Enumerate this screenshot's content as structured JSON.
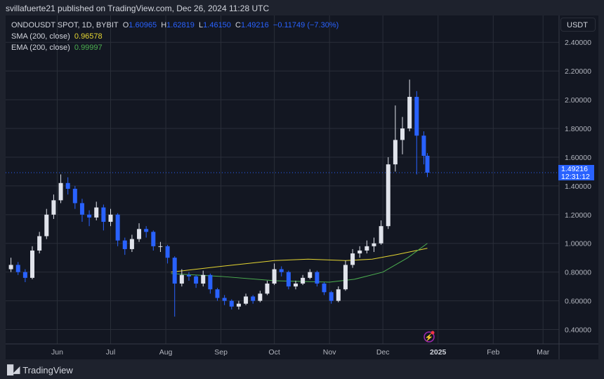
{
  "header": {
    "published": "svillafuerte21 published on TradingView.com, Dec 26, 2024 11:28 UTC"
  },
  "legend": {
    "symbol": "ONDOUSDT SPOT, 1D, BYBIT",
    "o_label": "O",
    "o": "1.60965",
    "h_label": "H",
    "h": "1.62819",
    "l_label": "L",
    "l": "1.46150",
    "c_label": "C",
    "c": "1.49216",
    "change": "−0.11749 (−7.30%)",
    "sma_label": "SMA (200, close)",
    "sma_value": "0.96578",
    "ema_label": "EMA (200, close)",
    "ema_value": "0.99997"
  },
  "price_axis": {
    "currency": "USDT",
    "current_price": "1.49216",
    "countdown": "12:31:12"
  },
  "footer": {
    "brand": "TradingView"
  },
  "colors": {
    "up": "#e0e3eb",
    "down": "#2962ff",
    "sma": "#e4d531",
    "ema": "#4caf50",
    "background": "#131722",
    "grid": "#2a2e39"
  },
  "chart_data": {
    "type": "candlestick",
    "ylim": [
      0.3,
      2.45
    ],
    "xlim": [
      "2024-05-03",
      "2025-03-10"
    ],
    "y_ticks": [
      "2.40000",
      "2.20000",
      "2.00000",
      "1.80000",
      "1.60000",
      "1.40000",
      "1.20000",
      "1.00000",
      "0.80000",
      "0.60000",
      "0.40000"
    ],
    "x_ticks": [
      [
        "Jun",
        "2024-06-01"
      ],
      [
        "Jul",
        "2024-07-01"
      ],
      [
        "Aug",
        "2024-08-01"
      ],
      [
        "Sep",
        "2024-09-01"
      ],
      [
        "Oct",
        "2024-10-01"
      ],
      [
        "Nov",
        "2024-11-01"
      ],
      [
        "Dec",
        "2024-12-01"
      ],
      [
        "2025",
        "2025-01-01"
      ],
      [
        "Feb",
        "2025-02-01"
      ],
      [
        "Mar",
        "2025-03-01"
      ]
    ],
    "candles": [
      [
        "2024-05-06",
        0.82,
        0.9,
        0.8,
        0.85
      ],
      [
        "2024-05-10",
        0.85,
        0.87,
        0.78,
        0.8
      ],
      [
        "2024-05-14",
        0.8,
        0.82,
        0.73,
        0.76
      ],
      [
        "2024-05-18",
        0.76,
        0.98,
        0.75,
        0.95
      ],
      [
        "2024-05-22",
        0.95,
        1.08,
        0.93,
        1.05
      ],
      [
        "2024-05-26",
        1.05,
        1.24,
        1.03,
        1.2
      ],
      [
        "2024-05-30",
        1.2,
        1.34,
        1.17,
        1.3
      ],
      [
        "2024-06-03",
        1.3,
        1.48,
        1.28,
        1.42
      ],
      [
        "2024-06-07",
        1.42,
        1.46,
        1.34,
        1.38
      ],
      [
        "2024-06-11",
        1.38,
        1.4,
        1.24,
        1.28
      ],
      [
        "2024-06-15",
        1.28,
        1.31,
        1.15,
        1.2
      ],
      [
        "2024-06-19",
        1.2,
        1.23,
        1.12,
        1.18
      ],
      [
        "2024-06-23",
        1.18,
        1.29,
        1.16,
        1.25
      ],
      [
        "2024-06-27",
        1.25,
        1.27,
        1.09,
        1.15
      ],
      [
        "2024-07-01",
        1.15,
        1.24,
        1.12,
        1.2
      ],
      [
        "2024-07-05",
        1.2,
        1.21,
        0.98,
        1.02
      ],
      [
        "2024-07-09",
        1.02,
        1.04,
        0.92,
        0.96
      ],
      [
        "2024-07-13",
        0.96,
        1.06,
        0.94,
        1.03
      ],
      [
        "2024-07-17",
        1.03,
        1.14,
        1.01,
        1.1
      ],
      [
        "2024-07-21",
        1.1,
        1.12,
        1.04,
        1.08
      ],
      [
        "2024-07-25",
        1.08,
        1.09,
        0.95,
        0.98
      ],
      [
        "2024-07-29",
        0.98,
        1.01,
        0.94,
        0.98
      ],
      [
        "2024-08-02",
        0.98,
        0.99,
        0.86,
        0.9
      ],
      [
        "2024-08-06",
        0.9,
        0.91,
        0.49,
        0.72
      ],
      [
        "2024-08-10",
        0.72,
        0.82,
        0.7,
        0.78
      ],
      [
        "2024-08-14",
        0.78,
        0.8,
        0.74,
        0.77
      ],
      [
        "2024-08-18",
        0.77,
        0.78,
        0.69,
        0.72
      ],
      [
        "2024-08-22",
        0.72,
        0.81,
        0.7,
        0.78
      ],
      [
        "2024-08-26",
        0.78,
        0.79,
        0.65,
        0.68
      ],
      [
        "2024-08-30",
        0.68,
        0.69,
        0.6,
        0.62
      ],
      [
        "2024-09-03",
        0.62,
        0.64,
        0.57,
        0.6
      ],
      [
        "2024-09-07",
        0.6,
        0.61,
        0.54,
        0.56
      ],
      [
        "2024-09-11",
        0.56,
        0.6,
        0.54,
        0.58
      ],
      [
        "2024-09-15",
        0.58,
        0.65,
        0.57,
        0.63
      ],
      [
        "2024-09-19",
        0.63,
        0.64,
        0.58,
        0.6
      ],
      [
        "2024-09-23",
        0.6,
        0.67,
        0.59,
        0.65
      ],
      [
        "2024-09-27",
        0.65,
        0.74,
        0.64,
        0.72
      ],
      [
        "2024-10-01",
        0.72,
        0.86,
        0.71,
        0.82
      ],
      [
        "2024-10-05",
        0.82,
        0.84,
        0.77,
        0.8
      ],
      [
        "2024-10-09",
        0.8,
        0.81,
        0.68,
        0.7
      ],
      [
        "2024-10-13",
        0.7,
        0.74,
        0.68,
        0.72
      ],
      [
        "2024-10-17",
        0.72,
        0.78,
        0.71,
        0.76
      ],
      [
        "2024-10-21",
        0.76,
        0.82,
        0.75,
        0.8
      ],
      [
        "2024-10-25",
        0.8,
        0.81,
        0.7,
        0.72
      ],
      [
        "2024-10-29",
        0.72,
        0.73,
        0.64,
        0.66
      ],
      [
        "2024-11-02",
        0.66,
        0.67,
        0.58,
        0.6
      ],
      [
        "2024-11-06",
        0.6,
        0.7,
        0.59,
        0.68
      ],
      [
        "2024-11-10",
        0.68,
        0.88,
        0.67,
        0.85
      ],
      [
        "2024-11-14",
        0.85,
        0.96,
        0.83,
        0.93
      ],
      [
        "2024-11-18",
        0.93,
        0.98,
        0.9,
        0.95
      ],
      [
        "2024-11-22",
        0.95,
        1.02,
        0.93,
        0.98
      ],
      [
        "2024-11-26",
        0.98,
        1.04,
        0.94,
        1.0
      ],
      [
        "2024-11-30",
        1.0,
        1.16,
        0.99,
        1.12
      ],
      [
        "2024-12-04",
        1.12,
        1.6,
        1.1,
        1.55
      ],
      [
        "2024-12-08",
        1.55,
        1.96,
        1.5,
        1.72
      ],
      [
        "2024-12-12",
        1.72,
        1.88,
        1.62,
        1.8
      ],
      [
        "2024-12-16",
        1.8,
        2.14,
        1.78,
        2.02
      ],
      [
        "2024-12-20",
        2.02,
        2.06,
        1.48,
        1.75
      ],
      [
        "2024-12-24",
        1.75,
        1.78,
        1.55,
        1.60965
      ],
      [
        "2024-12-26",
        1.60965,
        1.62819,
        1.4615,
        1.49216
      ]
    ],
    "series": [
      {
        "name": "SMA (200, close)",
        "points": [
          [
            "2024-08-04",
            0.8
          ],
          [
            "2024-09-01",
            0.84
          ],
          [
            "2024-10-01",
            0.88
          ],
          [
            "2024-10-20",
            0.89
          ],
          [
            "2024-11-10",
            0.88
          ],
          [
            "2024-11-25",
            0.89
          ],
          [
            "2024-12-08",
            0.92
          ],
          [
            "2024-12-26",
            0.96578
          ]
        ]
      },
      {
        "name": "EMA (200, close)",
        "points": [
          [
            "2024-08-04",
            0.79
          ],
          [
            "2024-09-01",
            0.77
          ],
          [
            "2024-10-01",
            0.74
          ],
          [
            "2024-11-01",
            0.73
          ],
          [
            "2024-11-15",
            0.75
          ],
          [
            "2024-12-01",
            0.8
          ],
          [
            "2024-12-15",
            0.9
          ],
          [
            "2024-12-26",
            0.99997
          ]
        ]
      }
    ]
  }
}
